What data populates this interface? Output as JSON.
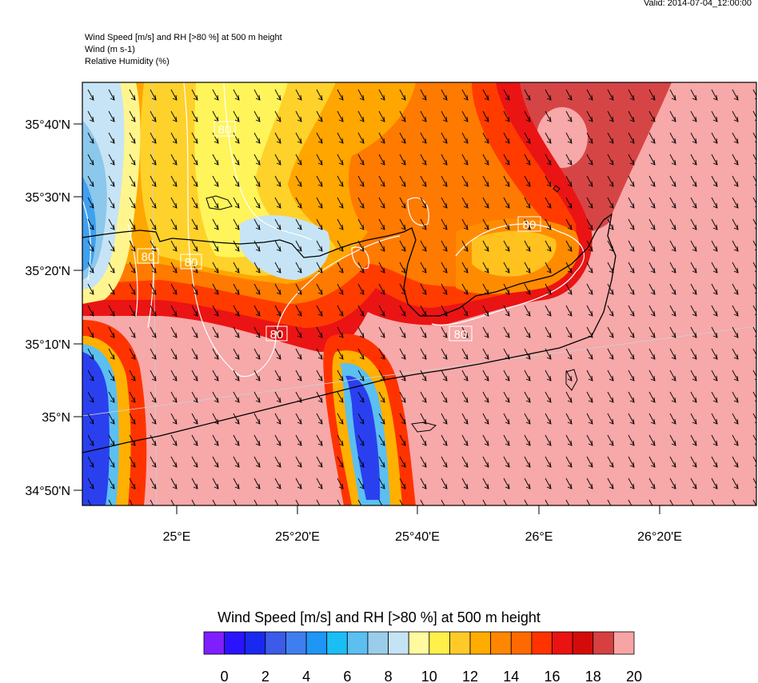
{
  "valid_time": "Valid: 2014-07-04_12:00:00",
  "header": {
    "line1": "Wind Speed [m/s] and RH [>80 %] at 500 m height",
    "line2": "Wind   (m s-1)",
    "line3": "Relative Humidity   (%)"
  },
  "map": {
    "lat_labels": [
      "35°40'N",
      "35°30'N",
      "35°20'N",
      "35°10'N",
      "35°N",
      "34°50'N"
    ],
    "lon_labels": [
      "25°E",
      "25°20'E",
      "25°40'E",
      "26°E",
      "26°20'E"
    ],
    "rh_contour_labels": [
      "80",
      "80",
      "80",
      "80",
      "80",
      "80"
    ]
  },
  "colorbar": {
    "title": "Wind Speed [m/s] and RH [>80 %] at 500 m height",
    "tick_labels": [
      "0",
      "2",
      "4",
      "6",
      "8",
      "10",
      "12",
      "14",
      "16",
      "18",
      "20"
    ],
    "colors": [
      "#7f1fff",
      "#2a14ff",
      "#1a29ef",
      "#3b5be8",
      "#3f7ef0",
      "#1f95f5",
      "#1bbdf5",
      "#5bbff0",
      "#99cdea",
      "#c4e3f5",
      "#fffaa0",
      "#fff04a",
      "#ffca29",
      "#ffac00",
      "#ff8600",
      "#ff6a00",
      "#ff3300",
      "#eb1212",
      "#d40b0b",
      "#d64040",
      "#f7a4a4"
    ]
  },
  "colors": {
    "ocean": "#f7a8a8",
    "coast": "#000000",
    "contour": "#ffffff",
    "arrow": "#000000"
  }
}
